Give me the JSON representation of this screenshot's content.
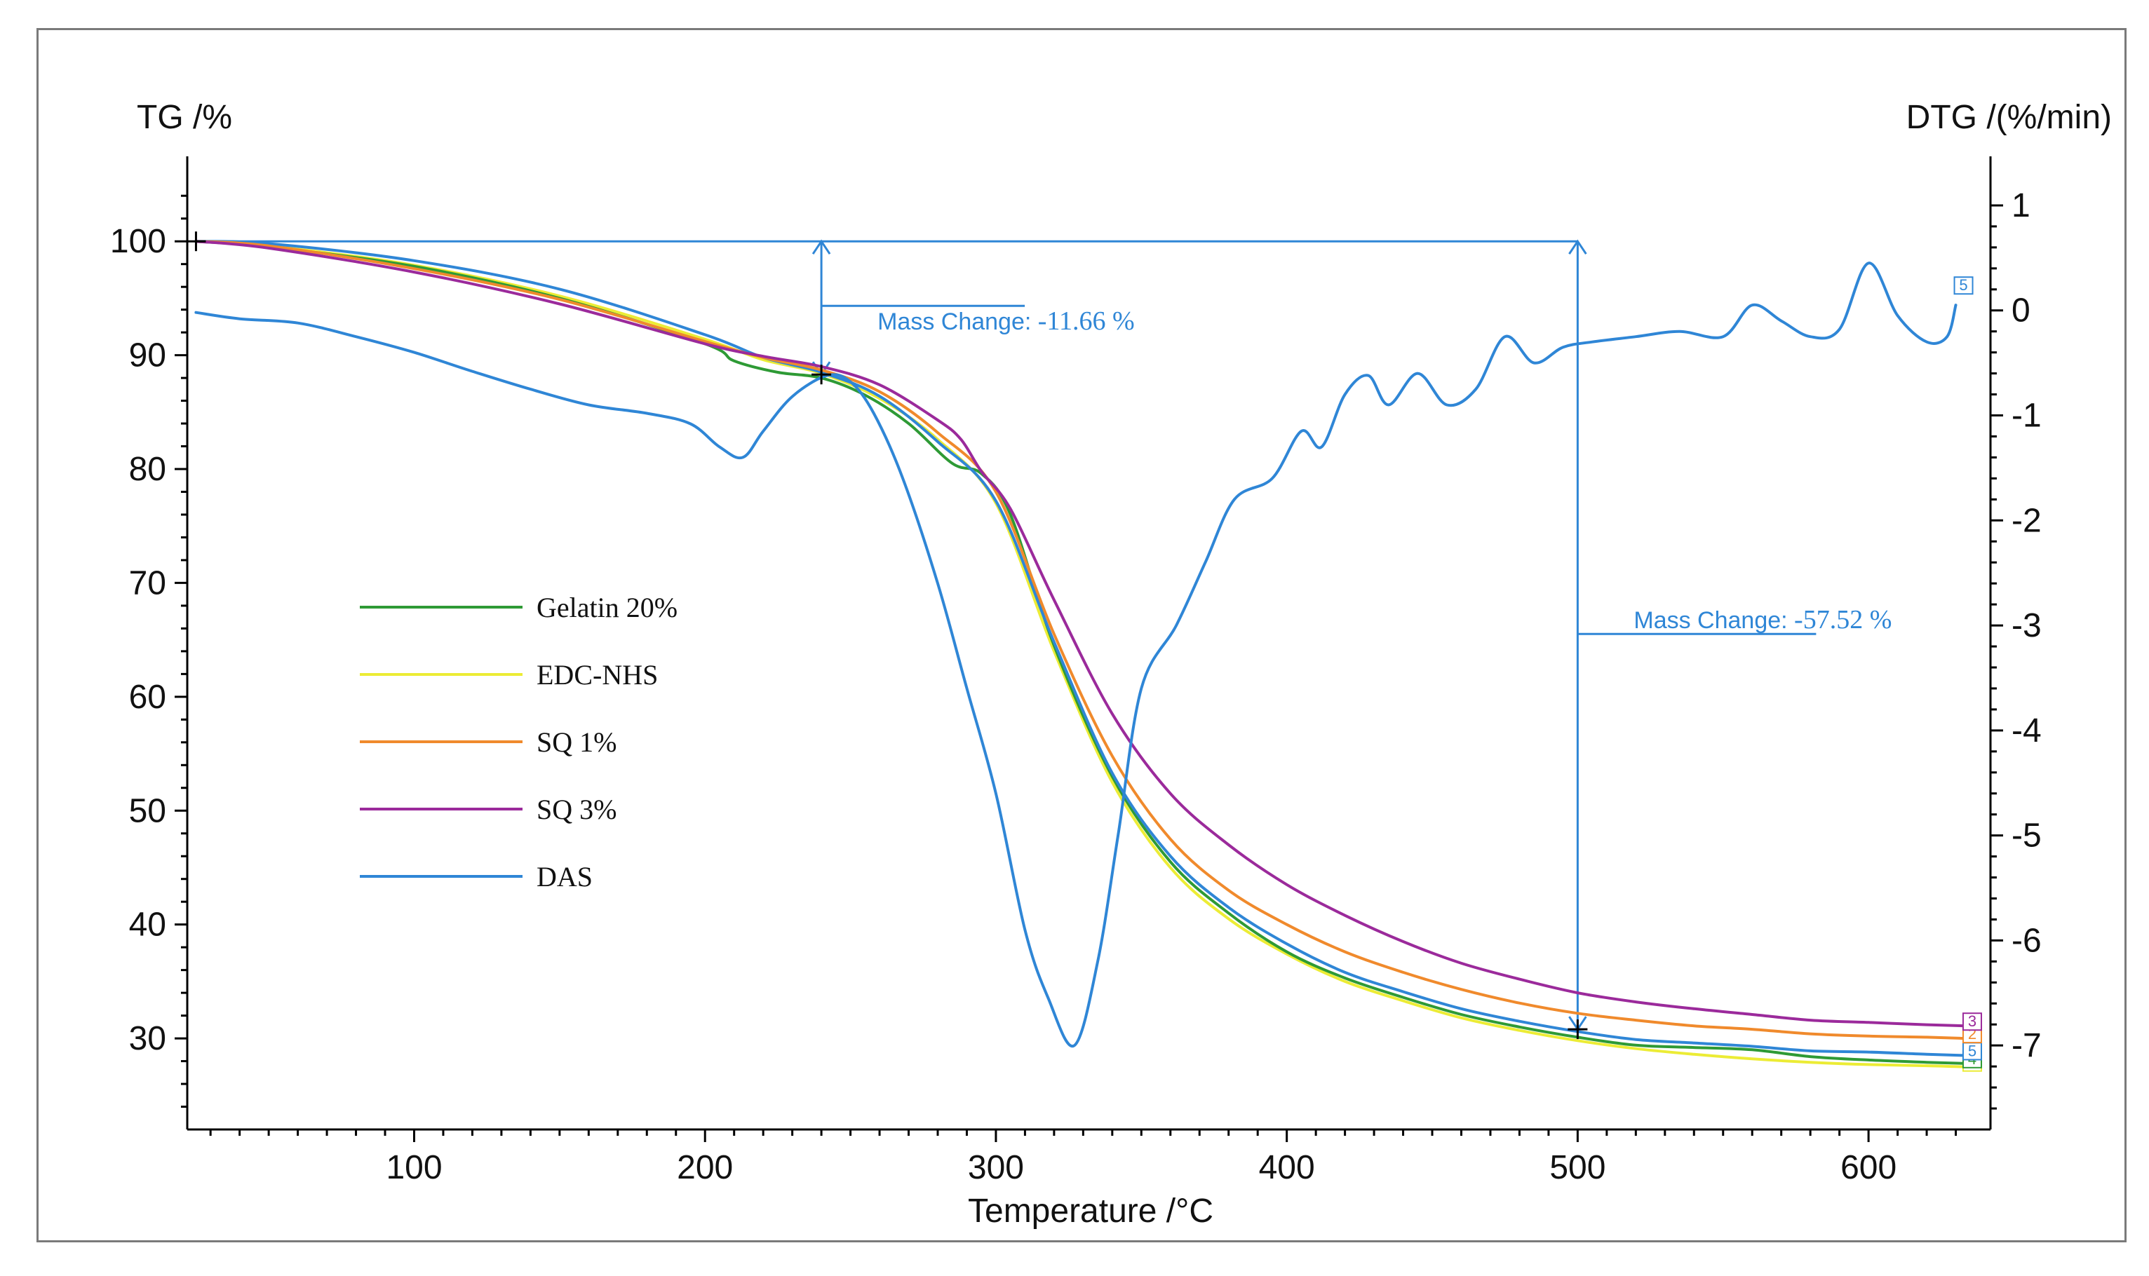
{
  "chart_data": {
    "type": "line",
    "xlabel": "Temperature /°C",
    "ylabel_left": "TG /%",
    "ylabel_right": "DTG /(%/min)",
    "xlim": [
      22,
      640
    ],
    "ylim_left": [
      22,
      105
    ],
    "ylim_right": [
      -7.8,
      1.2
    ],
    "x_ticks": [
      100,
      200,
      300,
      400,
      500,
      600
    ],
    "y_left_ticks": [
      30,
      40,
      50,
      60,
      70,
      80,
      90,
      100
    ],
    "y_right_ticks": [
      -7,
      -6,
      -5,
      -4,
      -3,
      -2,
      -1,
      0,
      1
    ],
    "legend": [
      {
        "label": "Gelatin 20%",
        "series": "gelatin"
      },
      {
        "label": "EDC-NHS",
        "series": "edc"
      },
      {
        "label": "SQ 1%",
        "series": "sq1"
      },
      {
        "label": "SQ 3%",
        "series": "sq3"
      },
      {
        "label": "DAS",
        "series": "das"
      }
    ],
    "series": [
      {
        "id": "edc",
        "name": "EDC-NHS",
        "axis": "left",
        "color": "#ecec35",
        "end_badge": "1",
        "points": [
          [
            25,
            100
          ],
          [
            50,
            99.6
          ],
          [
            100,
            97.9
          ],
          [
            150,
            95.2
          ],
          [
            200,
            91.4
          ],
          [
            220,
            89.6
          ],
          [
            240,
            88.4
          ],
          [
            260,
            86.2
          ],
          [
            280,
            82.6
          ],
          [
            300,
            77.0
          ],
          [
            320,
            64.0
          ],
          [
            340,
            52.5
          ],
          [
            360,
            45.0
          ],
          [
            380,
            40.5
          ],
          [
            400,
            37.4
          ],
          [
            420,
            35.0
          ],
          [
            440,
            33.3
          ],
          [
            460,
            31.8
          ],
          [
            480,
            30.7
          ],
          [
            500,
            29.8
          ],
          [
            520,
            29.1
          ],
          [
            540,
            28.6
          ],
          [
            560,
            28.2
          ],
          [
            580,
            27.9
          ],
          [
            600,
            27.7
          ],
          [
            620,
            27.6
          ],
          [
            633,
            27.5
          ]
        ]
      },
      {
        "id": "gelatin",
        "name": "Gelatin 20%",
        "axis": "left",
        "color": "#2e9a35",
        "end_badge": "4",
        "points": [
          [
            25,
            100
          ],
          [
            50,
            99.5
          ],
          [
            100,
            97.8
          ],
          [
            150,
            95.0
          ],
          [
            200,
            91.0
          ],
          [
            210,
            89.5
          ],
          [
            225,
            88.5
          ],
          [
            240,
            88.0
          ],
          [
            255,
            86.5
          ],
          [
            270,
            84.0
          ],
          [
            285,
            80.5
          ],
          [
            295,
            79.6
          ],
          [
            305,
            76.0
          ],
          [
            320,
            64.5
          ],
          [
            340,
            53.0
          ],
          [
            360,
            45.5
          ],
          [
            380,
            41.0
          ],
          [
            400,
            37.6
          ],
          [
            420,
            35.3
          ],
          [
            440,
            33.6
          ],
          [
            460,
            32.1
          ],
          [
            480,
            31.0
          ],
          [
            500,
            30.1
          ],
          [
            520,
            29.4
          ],
          [
            540,
            29.2
          ],
          [
            560,
            29.0
          ],
          [
            580,
            28.4
          ],
          [
            600,
            28.1
          ],
          [
            620,
            27.9
          ],
          [
            633,
            27.8
          ]
        ]
      },
      {
        "id": "das",
        "name": "DAS",
        "axis": "left",
        "color": "#2f86d6",
        "end_badge": "5",
        "points": [
          [
            25,
            100
          ],
          [
            50,
            99.8
          ],
          [
            100,
            98.3
          ],
          [
            150,
            95.8
          ],
          [
            200,
            91.8
          ],
          [
            220,
            89.8
          ],
          [
            240,
            88.5
          ],
          [
            260,
            86.4
          ],
          [
            280,
            82.4
          ],
          [
            300,
            77.2
          ],
          [
            320,
            64.8
          ],
          [
            340,
            53.3
          ],
          [
            360,
            46.0
          ],
          [
            380,
            41.5
          ],
          [
            400,
            38.3
          ],
          [
            420,
            35.8
          ],
          [
            440,
            34.1
          ],
          [
            460,
            32.6
          ],
          [
            480,
            31.5
          ],
          [
            500,
            30.6
          ],
          [
            520,
            29.9
          ],
          [
            540,
            29.6
          ],
          [
            560,
            29.3
          ],
          [
            580,
            28.9
          ],
          [
            600,
            28.8
          ],
          [
            620,
            28.6
          ],
          [
            633,
            28.5
          ]
        ]
      },
      {
        "id": "sq1",
        "name": "SQ 1%",
        "axis": "left",
        "color": "#f08a2c",
        "end_badge": "2",
        "points": [
          [
            25,
            100
          ],
          [
            50,
            99.6
          ],
          [
            100,
            97.6
          ],
          [
            150,
            94.9
          ],
          [
            200,
            91.2
          ],
          [
            220,
            89.8
          ],
          [
            240,
            88.7
          ],
          [
            260,
            86.8
          ],
          [
            280,
            83.2
          ],
          [
            300,
            78.0
          ],
          [
            320,
            65.5
          ],
          [
            340,
            54.8
          ],
          [
            360,
            47.5
          ],
          [
            380,
            43.0
          ],
          [
            400,
            40.0
          ],
          [
            420,
            37.6
          ],
          [
            440,
            35.8
          ],
          [
            460,
            34.3
          ],
          [
            480,
            33.1
          ],
          [
            500,
            32.2
          ],
          [
            520,
            31.6
          ],
          [
            540,
            31.1
          ],
          [
            560,
            30.8
          ],
          [
            580,
            30.4
          ],
          [
            600,
            30.2
          ],
          [
            620,
            30.1
          ],
          [
            633,
            30.0
          ]
        ]
      },
      {
        "id": "sq3",
        "name": "SQ 3%",
        "axis": "left",
        "color": "#9b2a9b",
        "end_badge": "3",
        "points": [
          [
            25,
            100
          ],
          [
            50,
            99.4
          ],
          [
            100,
            97.3
          ],
          [
            150,
            94.5
          ],
          [
            200,
            91.0
          ],
          [
            220,
            89.9
          ],
          [
            240,
            89.0
          ],
          [
            260,
            87.4
          ],
          [
            280,
            84.3
          ],
          [
            288,
            82.6
          ],
          [
            295,
            79.8
          ],
          [
            305,
            76.5
          ],
          [
            320,
            68.5
          ],
          [
            340,
            58.5
          ],
          [
            360,
            51.5
          ],
          [
            380,
            47.0
          ],
          [
            400,
            43.5
          ],
          [
            420,
            40.8
          ],
          [
            440,
            38.5
          ],
          [
            460,
            36.6
          ],
          [
            480,
            35.2
          ],
          [
            500,
            34.0
          ],
          [
            520,
            33.2
          ],
          [
            540,
            32.6
          ],
          [
            560,
            32.1
          ],
          [
            580,
            31.6
          ],
          [
            600,
            31.4
          ],
          [
            620,
            31.2
          ],
          [
            633,
            31.1
          ]
        ]
      },
      {
        "id": "dtg",
        "name": "DTG",
        "axis": "right",
        "color": "#2f86d6",
        "end_badge": "5",
        "points": [
          [
            25,
            -0.02
          ],
          [
            40,
            -0.08
          ],
          [
            60,
            -0.12
          ],
          [
            80,
            -0.25
          ],
          [
            100,
            -0.4
          ],
          [
            120,
            -0.58
          ],
          [
            140,
            -0.75
          ],
          [
            160,
            -0.9
          ],
          [
            180,
            -0.98
          ],
          [
            195,
            -1.08
          ],
          [
            205,
            -1.3
          ],
          [
            213,
            -1.4
          ],
          [
            220,
            -1.15
          ],
          [
            230,
            -0.82
          ],
          [
            242,
            -0.62
          ],
          [
            250,
            -0.68
          ],
          [
            258,
            -0.98
          ],
          [
            268,
            -1.6
          ],
          [
            280,
            -2.6
          ],
          [
            290,
            -3.6
          ],
          [
            300,
            -4.6
          ],
          [
            310,
            -5.9
          ],
          [
            318,
            -6.55
          ],
          [
            327,
            -7.0
          ],
          [
            335,
            -6.2
          ],
          [
            342,
            -5.0
          ],
          [
            350,
            -3.6
          ],
          [
            362,
            -3.0
          ],
          [
            372,
            -2.4
          ],
          [
            382,
            -1.8
          ],
          [
            395,
            -1.6
          ],
          [
            405,
            -1.15
          ],
          [
            412,
            -1.3
          ],
          [
            420,
            -0.8
          ],
          [
            428,
            -0.62
          ],
          [
            435,
            -0.9
          ],
          [
            445,
            -0.6
          ],
          [
            455,
            -0.9
          ],
          [
            465,
            -0.75
          ],
          [
            475,
            -0.25
          ],
          [
            485,
            -0.5
          ],
          [
            495,
            -0.35
          ],
          [
            505,
            -0.3
          ],
          [
            520,
            -0.25
          ],
          [
            535,
            -0.2
          ],
          [
            550,
            -0.25
          ],
          [
            560,
            0.05
          ],
          [
            570,
            -0.1
          ],
          [
            580,
            -0.25
          ],
          [
            590,
            -0.18
          ],
          [
            600,
            0.45
          ],
          [
            610,
            -0.05
          ],
          [
            620,
            -0.3
          ],
          [
            627,
            -0.25
          ],
          [
            630,
            0.05
          ]
        ]
      }
    ],
    "markers": [
      {
        "x": 25,
        "y": 100,
        "label": "+"
      },
      {
        "x": 240,
        "y": 88.3,
        "label": "+"
      },
      {
        "x": 500,
        "y": 30.8,
        "label": "+"
      }
    ],
    "annotations": [
      {
        "prefix": "Mass Change: ",
        "value": "-11.66 %",
        "x_from": 25,
        "x_to": 240,
        "y_top": 100,
        "y_bottom": 88.3
      },
      {
        "prefix": "Mass Change: ",
        "value": "-57.52 %",
        "x_from": 240,
        "x_to": 500,
        "y_top": 100,
        "y_bottom": 30.8
      }
    ]
  }
}
